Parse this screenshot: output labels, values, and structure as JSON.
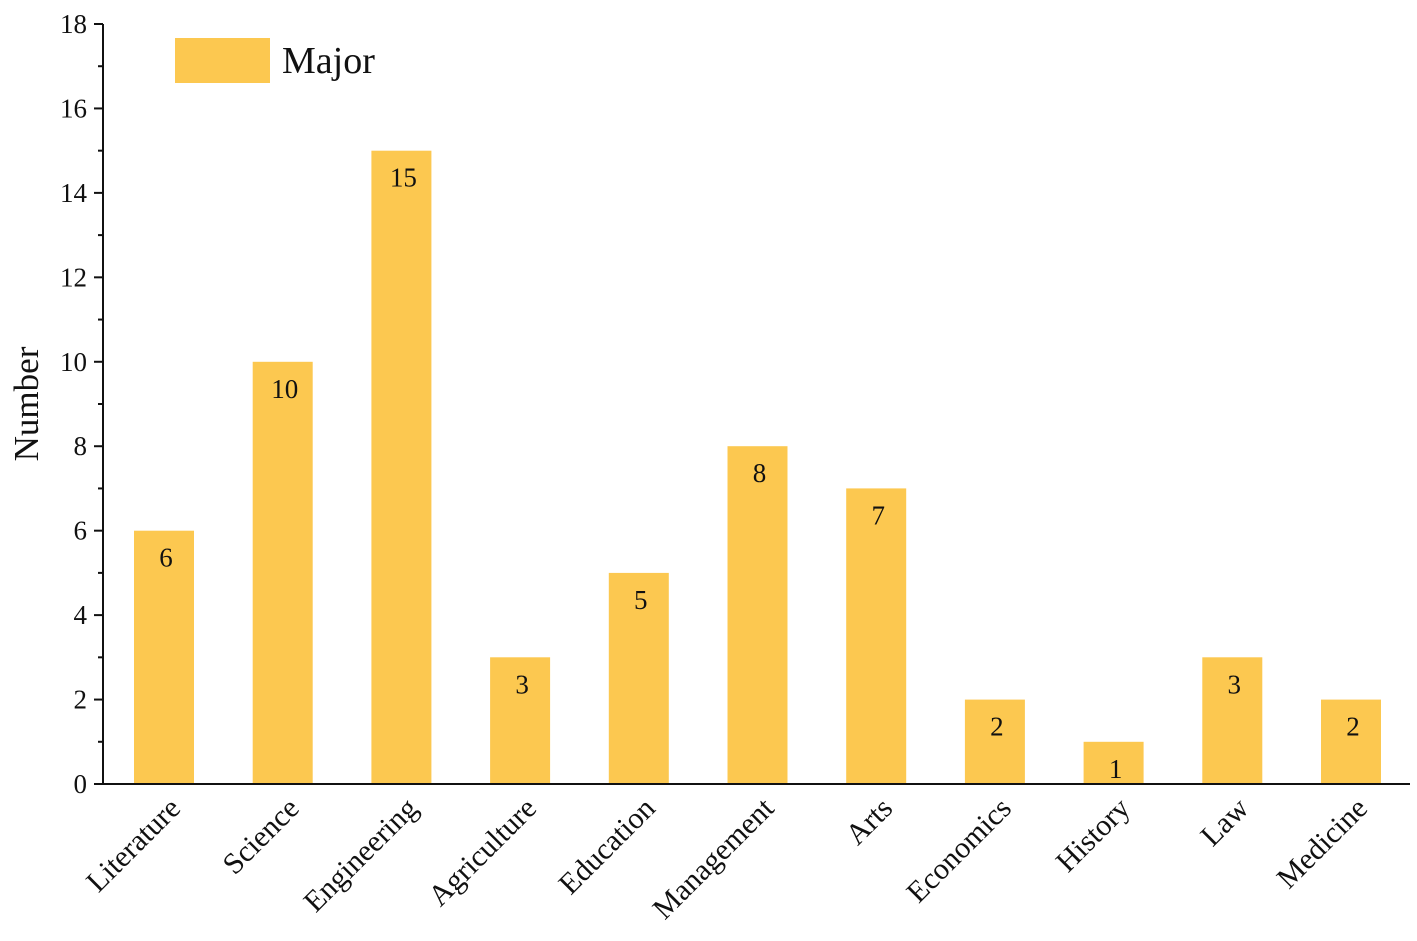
{
  "chart_data": {
    "type": "bar",
    "categories": [
      "Literature",
      "Science",
      "Engineering",
      "Agriculture",
      "Education",
      "Management",
      "Arts",
      "Economics",
      "History",
      "Law",
      "Medicine"
    ],
    "series": [
      {
        "name": "Major",
        "values": [
          6,
          10,
          15,
          3,
          5,
          8,
          7,
          2,
          1,
          3,
          2
        ]
      }
    ],
    "data_labels": [
      "6",
      "10",
      "15",
      "3",
      "5",
      "8",
      "7",
      "2",
      "1",
      "3",
      "2"
    ],
    "xlabel": "",
    "ylabel": "Number",
    "ylim": [
      0,
      18
    ],
    "yticks": [
      0,
      2,
      4,
      6,
      8,
      10,
      12,
      14,
      16,
      18
    ],
    "ytick_labels": [
      "0",
      "2",
      "4",
      "6",
      "8",
      "10",
      "12",
      "14",
      "16",
      "18"
    ],
    "bar_color": "#FCC850",
    "grid": false,
    "legend": {
      "position": "top-left",
      "label": "Major"
    }
  }
}
